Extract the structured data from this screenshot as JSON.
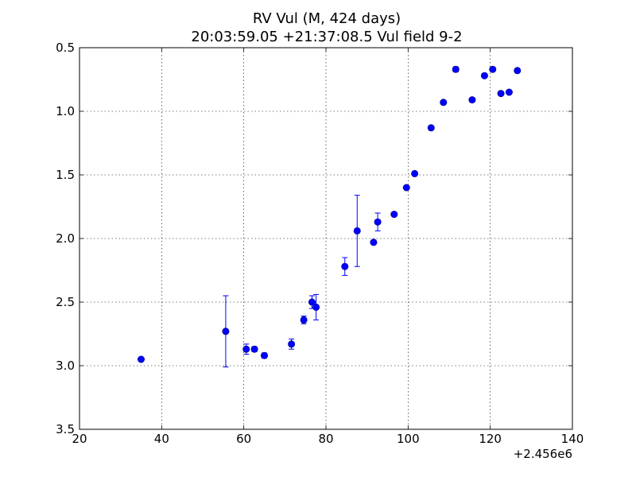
{
  "chart_data": {
    "type": "scatter",
    "title": "RV Vul (M, 424 days)",
    "subtitle": "20:03:59.05 +21:37:08.5 Vul field 9-2",
    "xlabel": "",
    "ylabel": "",
    "x_offset_label": "+2.456e6",
    "xlim": [
      20,
      140
    ],
    "ylim": [
      3.5,
      0.5
    ],
    "y_inverted": true,
    "grid": true,
    "x_ticks": [
      20,
      40,
      60,
      80,
      100,
      120,
      140
    ],
    "x_tick_labels": [
      "20",
      "40",
      "60",
      "80",
      "100",
      "120",
      "140"
    ],
    "y_ticks": [
      0.5,
      1.0,
      1.5,
      2.0,
      2.5,
      3.0,
      3.5
    ],
    "y_tick_labels": [
      "0.5",
      "1.0",
      "1.5",
      "2.0",
      "2.5",
      "3.0",
      "3.5"
    ],
    "colors": {
      "marker": "#0000ff",
      "errorbar": "#0000ff"
    },
    "series": [
      {
        "x": [
          35.0,
          55.6,
          60.6,
          62.6,
          65.0,
          71.6,
          74.6,
          76.6,
          77.6,
          84.6,
          87.6,
          91.6,
          92.6,
          96.6,
          99.6,
          101.6,
          105.6,
          108.6,
          111.6,
          115.6,
          118.6,
          120.6,
          122.6,
          124.6,
          126.6
        ],
        "y": [
          2.95,
          2.73,
          2.87,
          2.87,
          2.92,
          2.83,
          2.64,
          2.5,
          2.54,
          2.22,
          1.94,
          2.03,
          1.87,
          1.81,
          1.6,
          1.49,
          1.13,
          0.93,
          0.67,
          0.91,
          0.72,
          0.67,
          0.86,
          0.85,
          0.68
        ],
        "yerr": [
          0.01,
          0.28,
          0.04,
          0.02,
          0.02,
          0.04,
          0.03,
          0.05,
          0.1,
          0.07,
          0.28,
          0.01,
          0.07,
          0.01,
          0.01,
          0.01,
          0.01,
          0.01,
          0.02,
          0.01,
          0.01,
          0.01,
          0.01,
          0.01,
          0.01
        ]
      }
    ]
  }
}
